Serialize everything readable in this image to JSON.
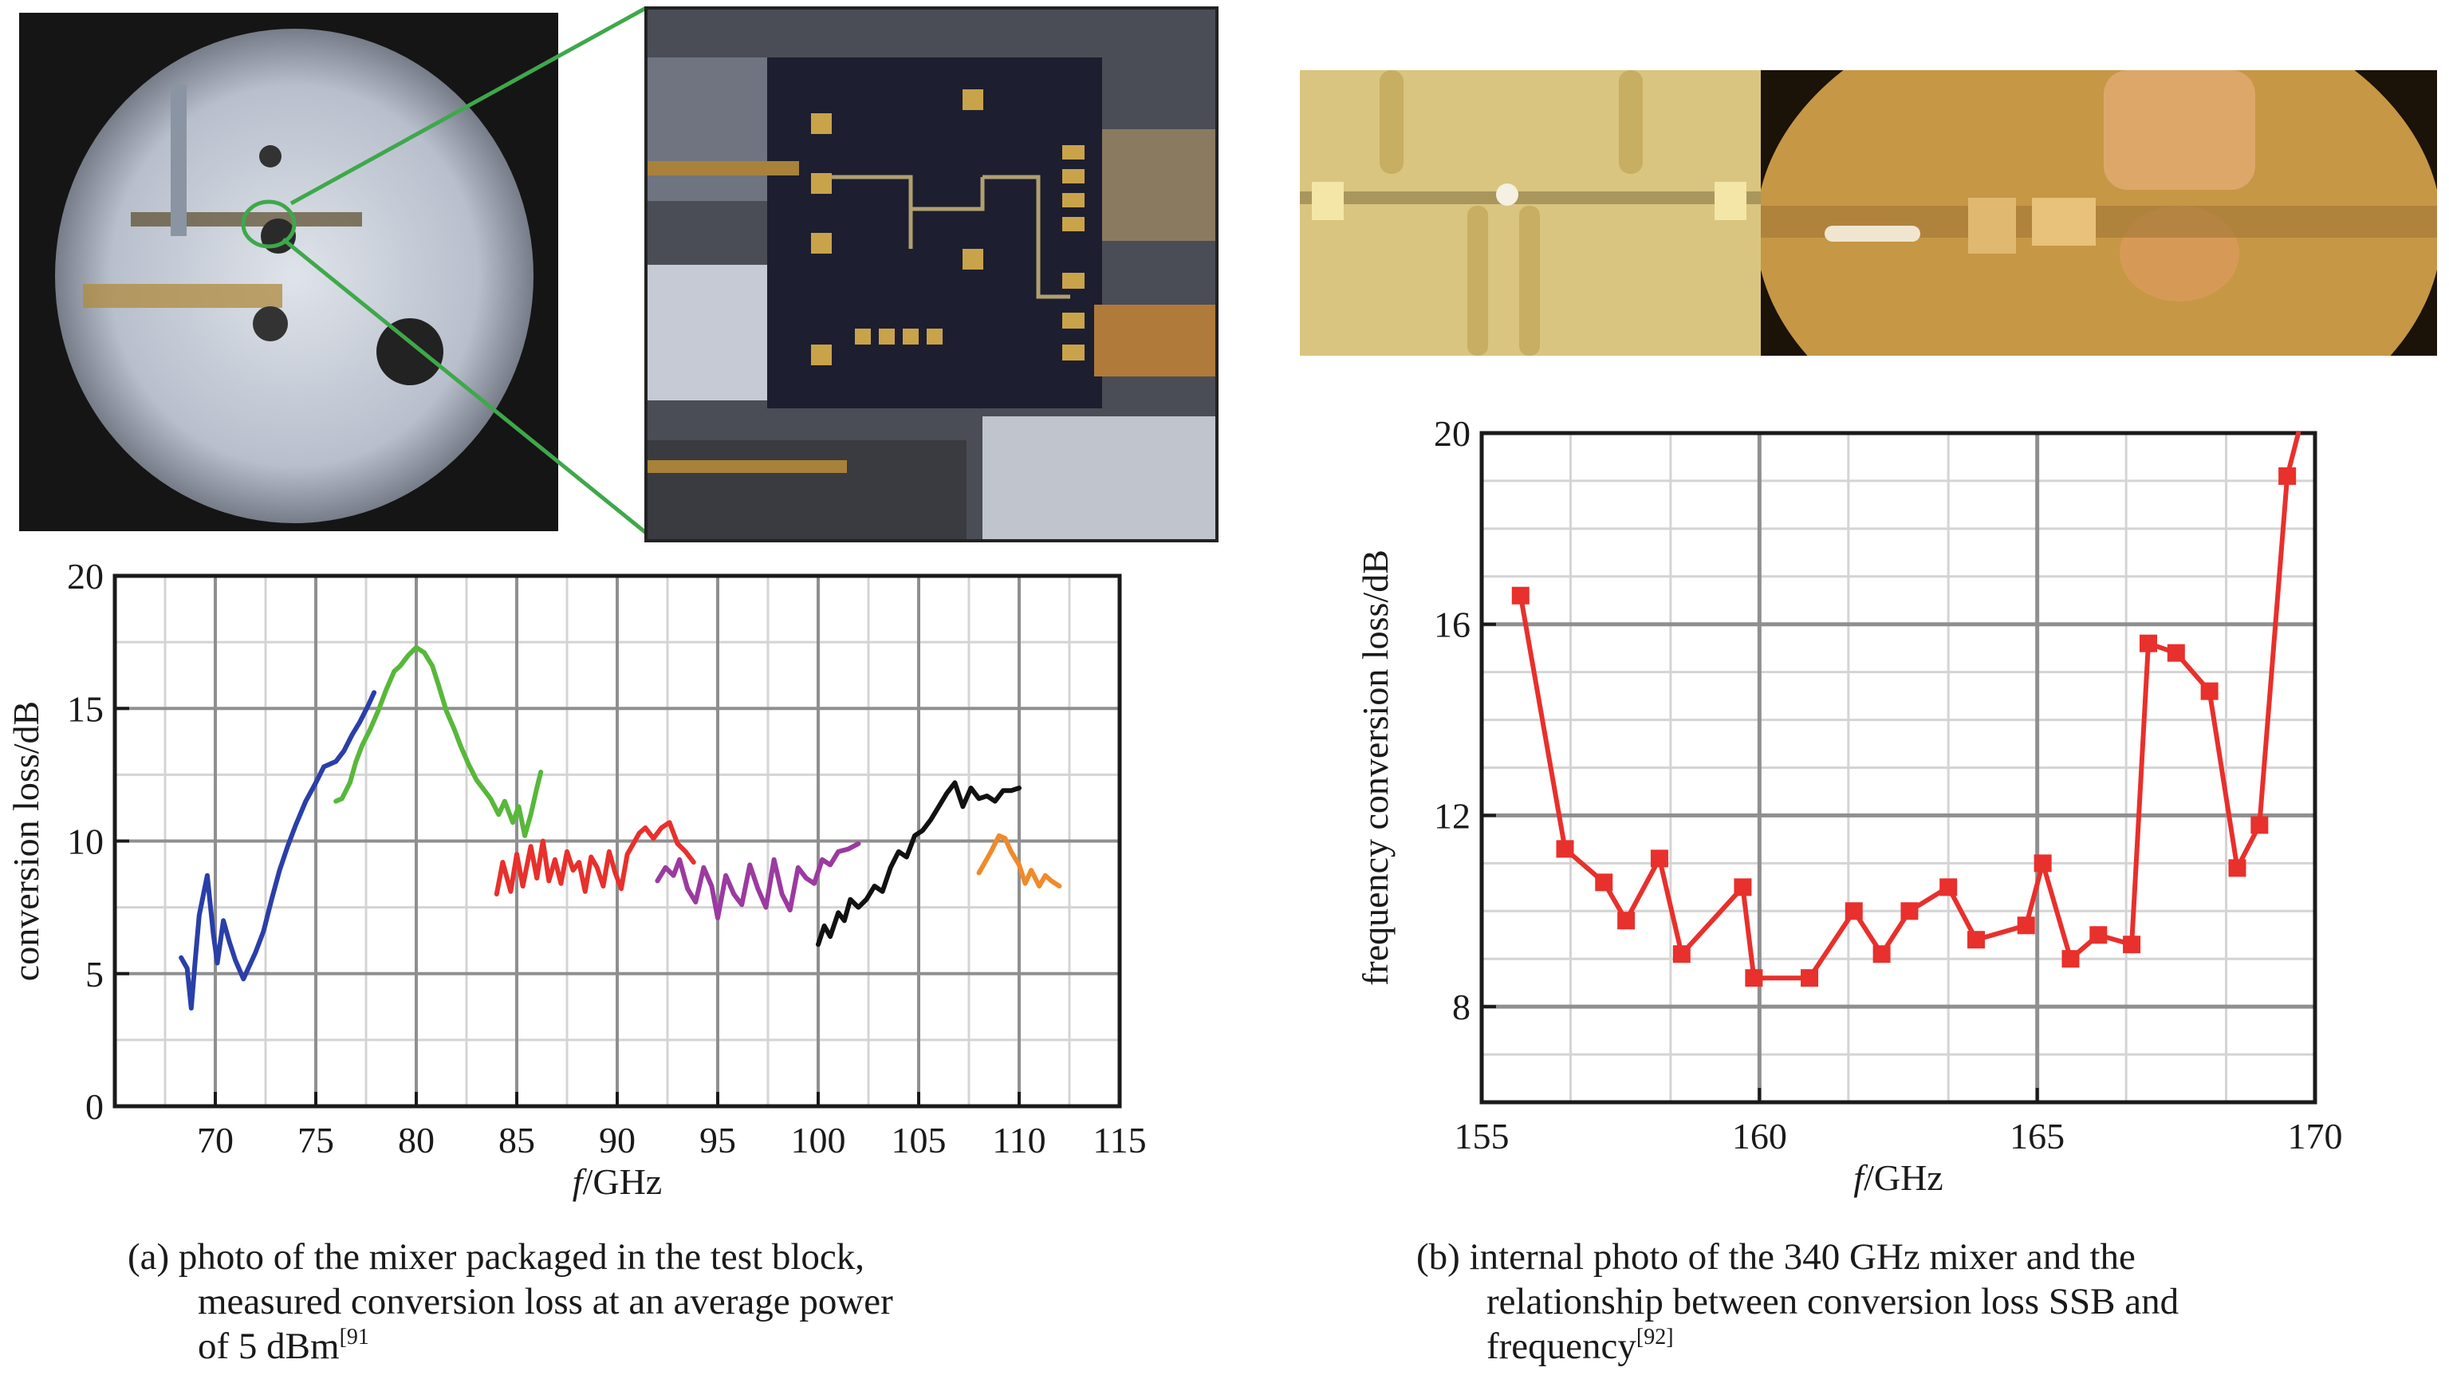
{
  "left": {
    "caption_lines": [
      "(a) photo of the mixer packaged in the test block,",
      "measured conversion loss at an average power",
      "of 5 dBm",
      "[91"
    ]
  },
  "right": {
    "caption_lines": [
      "(b) internal photo of the 340 GHz mixer and the",
      "relationship between conversion loss SSB and",
      "frequency",
      "[92]"
    ]
  },
  "chart_data": [
    {
      "type": "line",
      "title": "",
      "xlabel_italic": "f",
      "xlabel_rest": "/GHz",
      "ylabel": "conversion loss/dB",
      "xlim": [
        65,
        115
      ],
      "ylim": [
        0,
        20
      ],
      "x_ticks": [
        70,
        75,
        80,
        85,
        90,
        95,
        100,
        105,
        110,
        115
      ],
      "y_ticks": [
        0,
        5,
        10,
        15,
        20
      ],
      "grid": true,
      "legend": "none",
      "series": [
        {
          "color": "#2a3fa8",
          "x": [
            68.3,
            68.6,
            68.8,
            69.0,
            69.2,
            69.6,
            69.9,
            70.1,
            70.4,
            70.7,
            71.0,
            71.4,
            71.7,
            72.0,
            72.4,
            72.8,
            73.2,
            73.6,
            74.0,
            74.5,
            75.0,
            75.4,
            76.0,
            76.4,
            76.8,
            77.2,
            77.6,
            77.9
          ],
          "y": [
            5.6,
            5.2,
            3.7,
            5.5,
            7.2,
            8.7,
            6.5,
            5.4,
            7.0,
            6.2,
            5.5,
            4.8,
            5.3,
            5.8,
            6.6,
            7.8,
            8.9,
            9.8,
            10.6,
            11.5,
            12.2,
            12.8,
            13.0,
            13.4,
            14.0,
            14.5,
            15.1,
            15.6
          ]
        },
        {
          "color": "#57b83a",
          "x": [
            76.0,
            76.3,
            76.7,
            77.0,
            77.3,
            77.7,
            78.1,
            78.5,
            78.9,
            79.2,
            79.6,
            80.0,
            80.4,
            80.8,
            81.1,
            81.5,
            81.9,
            82.2,
            82.6,
            83.0,
            83.4,
            83.7,
            84.1,
            84.4,
            84.8,
            85.1,
            85.4,
            85.7,
            86.0,
            86.2
          ],
          "y": [
            11.5,
            11.6,
            12.2,
            13.0,
            13.6,
            14.2,
            14.9,
            15.7,
            16.4,
            16.6,
            17.0,
            17.3,
            17.1,
            16.6,
            15.9,
            14.9,
            14.2,
            13.6,
            12.9,
            12.3,
            11.9,
            11.6,
            11.0,
            11.5,
            10.7,
            11.3,
            10.2,
            11.0,
            12.0,
            12.6
          ]
        },
        {
          "color": "#e8302c",
          "x": [
            84.0,
            84.3,
            84.7,
            85.0,
            85.3,
            85.7,
            86.0,
            86.3,
            86.6,
            86.9,
            87.2,
            87.5,
            87.8,
            88.1,
            88.4,
            88.7,
            89.0,
            89.3,
            89.6,
            89.9,
            90.2,
            90.5,
            90.8,
            91.1,
            91.4,
            91.8,
            92.2,
            92.6,
            93.0,
            93.4,
            93.8
          ],
          "y": [
            8.0,
            9.2,
            8.1,
            9.5,
            8.3,
            9.8,
            8.6,
            10.0,
            8.5,
            9.3,
            8.4,
            9.6,
            8.9,
            9.2,
            8.1,
            9.4,
            9.0,
            8.3,
            9.6,
            8.8,
            8.2,
            9.5,
            9.9,
            10.3,
            10.5,
            10.1,
            10.5,
            10.7,
            9.9,
            9.6,
            9.2
          ]
        },
        {
          "color": "#9b3aa0",
          "x": [
            92.0,
            92.4,
            92.8,
            93.1,
            93.5,
            93.9,
            94.3,
            94.7,
            95.0,
            95.4,
            95.8,
            96.2,
            96.6,
            97.0,
            97.4,
            97.8,
            98.2,
            98.6,
            99.0,
            99.4,
            99.8,
            100.2,
            100.6,
            101.0,
            101.5,
            102.0
          ],
          "y": [
            8.5,
            9.0,
            8.7,
            9.3,
            8.2,
            7.7,
            9.0,
            8.3,
            7.1,
            8.7,
            8.0,
            7.6,
            9.1,
            8.2,
            7.5,
            9.3,
            8.0,
            7.4,
            9.0,
            8.6,
            8.4,
            9.3,
            9.1,
            9.6,
            9.7,
            9.9
          ]
        },
        {
          "color": "#111111",
          "x": [
            100.0,
            100.3,
            100.6,
            101.0,
            101.3,
            101.6,
            102.0,
            102.4,
            102.8,
            103.2,
            103.6,
            104.0,
            104.4,
            104.8,
            105.2,
            105.6,
            106.0,
            106.4,
            106.8,
            107.2,
            107.6,
            108.0,
            108.4,
            108.8,
            109.2,
            109.6,
            110.0
          ],
          "y": [
            6.1,
            6.8,
            6.4,
            7.3,
            7.0,
            7.8,
            7.5,
            7.8,
            8.3,
            8.1,
            9.0,
            9.6,
            9.4,
            10.2,
            10.4,
            10.8,
            11.3,
            11.8,
            12.2,
            11.3,
            12.0,
            11.6,
            11.7,
            11.5,
            11.9,
            11.9,
            12.0
          ]
        },
        {
          "color": "#f08a2a",
          "x": [
            108.0,
            108.3,
            108.6,
            109.0,
            109.3,
            109.6,
            110.0,
            110.3,
            110.6,
            111.0,
            111.3,
            111.6,
            112.0
          ],
          "y": [
            8.8,
            9.2,
            9.6,
            10.2,
            10.1,
            9.6,
            9.1,
            8.4,
            8.9,
            8.3,
            8.7,
            8.5,
            8.3
          ]
        }
      ]
    },
    {
      "type": "line",
      "title": "",
      "xlabel_italic": "f",
      "xlabel_rest": "/GHz",
      "ylabel": "frequency conversion loss/dB",
      "xlim": [
        155,
        170
      ],
      "ylim": [
        6,
        20
      ],
      "x_ticks": [
        155,
        160,
        165,
        170
      ],
      "y_ticks": [
        8,
        12,
        16,
        20
      ],
      "grid": true,
      "legend": "none",
      "series": [
        {
          "color": "#e8302c",
          "marker": "square",
          "x": [
            155.7,
            156.5,
            157.2,
            157.6,
            158.2,
            158.6,
            159.7,
            159.9,
            160.9,
            161.7,
            162.2,
            162.7,
            163.4,
            163.9,
            164.8,
            165.1,
            165.6,
            166.1,
            166.7,
            167.0,
            167.5,
            168.1,
            168.6,
            169.0,
            169.5
          ],
          "y": [
            16.6,
            11.3,
            10.6,
            9.8,
            11.1,
            9.1,
            10.5,
            8.6,
            8.6,
            10.0,
            9.1,
            10.0,
            10.5,
            9.4,
            9.7,
            11.0,
            9.0,
            9.5,
            9.3,
            15.6,
            15.4,
            14.6,
            10.9,
            11.8,
            19.1
          ],
          "tail": [
            169.7,
            20.0
          ]
        }
      ]
    }
  ],
  "colors": {
    "grid_major": "#8f8f8f",
    "grid_minor": "#d4d4d4",
    "zoom_lines": "#3ea84a"
  }
}
